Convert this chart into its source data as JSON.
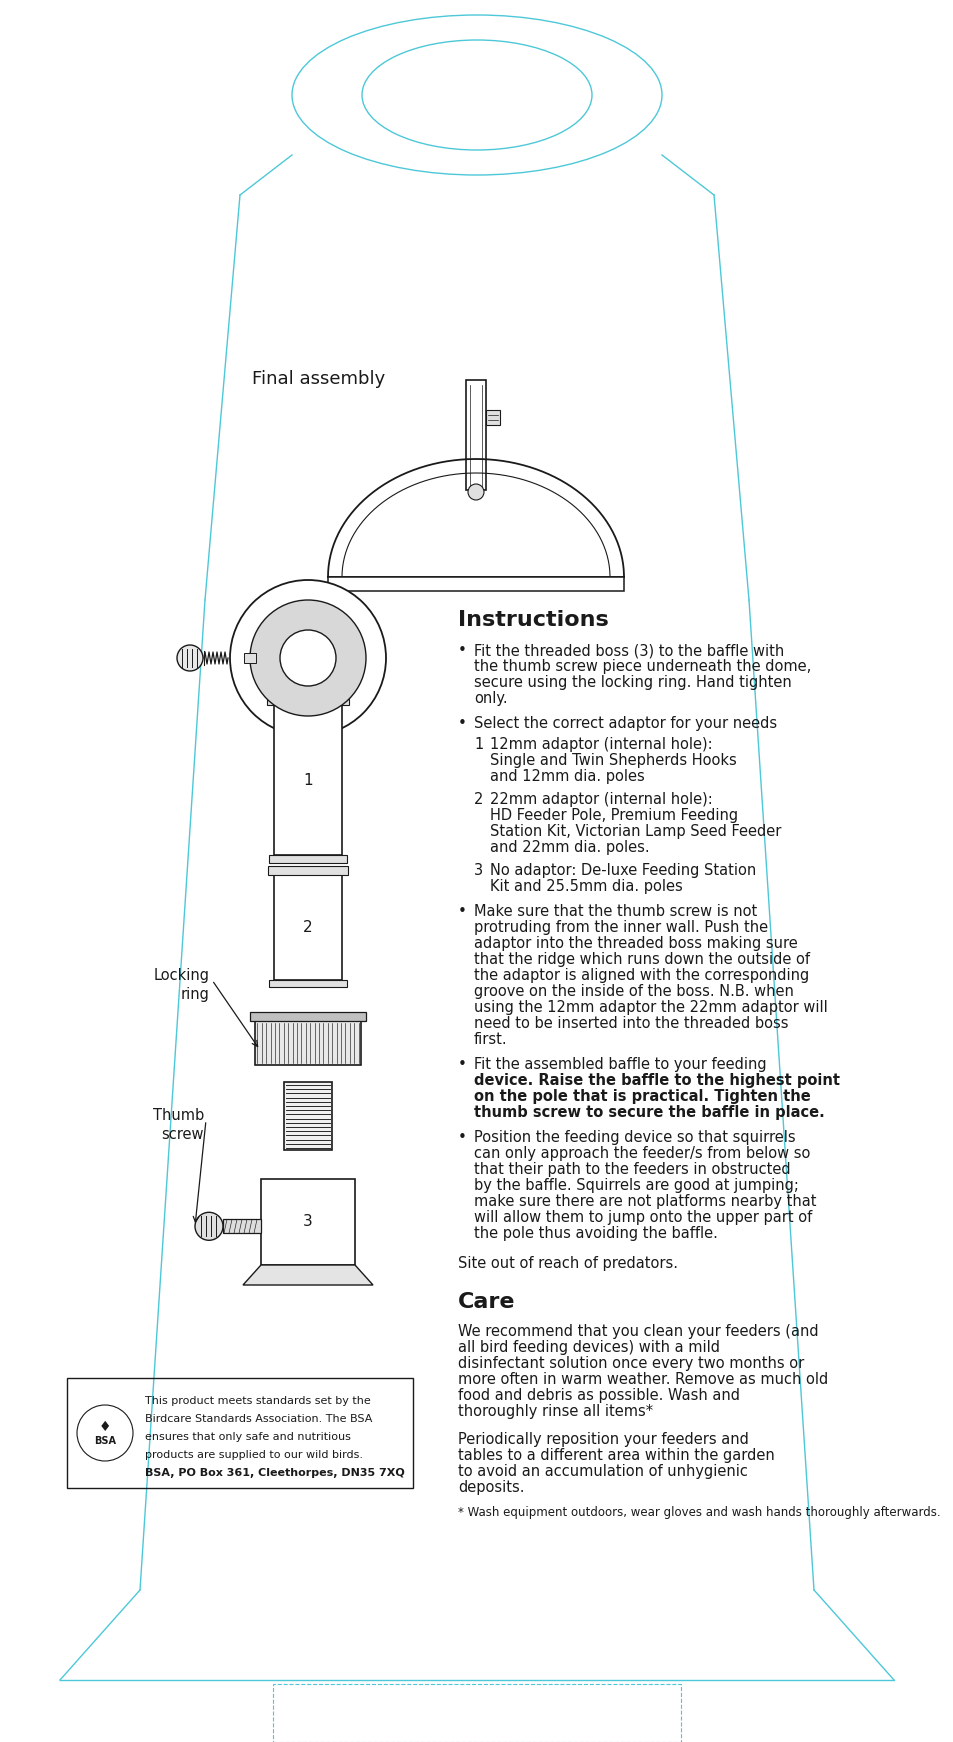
{
  "bg_color": "#ffffff",
  "cyan": "#4dc8d8",
  "black": "#1a1a1a",
  "gray_light": "#e0e0e0",
  "gray_med": "#c0c0c0",
  "title_assembly": "Final assembly",
  "section_instructions": "Instructions",
  "section_care": "Care",
  "locking_ring_label": "Locking\nring",
  "thumb_screw_label": "Thumb\nscrew",
  "bullet1": "Fit the threaded boss (3) to the baffle with the thumb screw piece underneath the dome, secure using the locking ring. Hand tighten only.",
  "bullet2": "Select the correct adaptor for your needs",
  "sub1_num": "1",
  "sub1_text": "12mm adaptor (internal hole):\nSingle and Twin Shepherds Hooks\nand 12mm dia. poles",
  "sub2_num": "2",
  "sub2_text": "22mm adaptor (internal hole):\nHD Feeder Pole, Premium Feeding\nStation Kit, Victorian Lamp Seed Feeder\nand 22mm dia. poles.",
  "sub3_num": "3",
  "sub3_text": "No adaptor: De-luxe Feeding Station\nKit and 25.5mm dia. poles",
  "bullet3": "Make sure that the thumb screw is not protruding from the inner wall. Push the adaptor into the threaded boss making sure that the ridge which runs down the outside of the adaptor is aligned with the corresponding groove on the inside of the boss. N.B. when using the 12mm adaptor the 22mm adaptor will need to be inserted into the threaded boss first.",
  "bullet4_pre": "Fit the assembled baffle to your feeding device. ",
  "bullet4_bold": "Raise the baffle to the highest point on the pole that is practical.",
  "bullet4_post": " Tighten the thumb screw to secure the baffle in place.",
  "bullet5": "Position the feeding device so that squirrels can only approach the feeder/s from below so that their path to the feeders in obstructed by the baffle. Squirrels are good at jumping; make sure there are not platforms nearby that will allow them to jump onto the upper part of the pole thus avoiding the baffle.",
  "site_note": "Site out of reach of predators.",
  "care_p1": "We recommend that you clean your feeders (and all bird feeding devices) with a mild disinfectant solution once every two months or more often in warm weather. Remove as much old food and debris as possible. Wash and thoroughly rinse all items*",
  "care_p2": "Periodically reposition your feeders and tables to a different area within the garden to avoid an accumulation of unhygienic deposits.",
  "footnote": "* Wash equipment outdoors, wear gloves and wash hands thoroughly afterwards.",
  "bsa_line1": "This product meets standards set by the",
  "bsa_line2": "Birdcare Standards Association. The BSA",
  "bsa_line3": "ensures that only safe and nutritious",
  "bsa_line4": "products are supplied to our wild birds.",
  "bsa_line5": "BSA, PO Box 361, Cleethorpes, DN35 7XQ"
}
